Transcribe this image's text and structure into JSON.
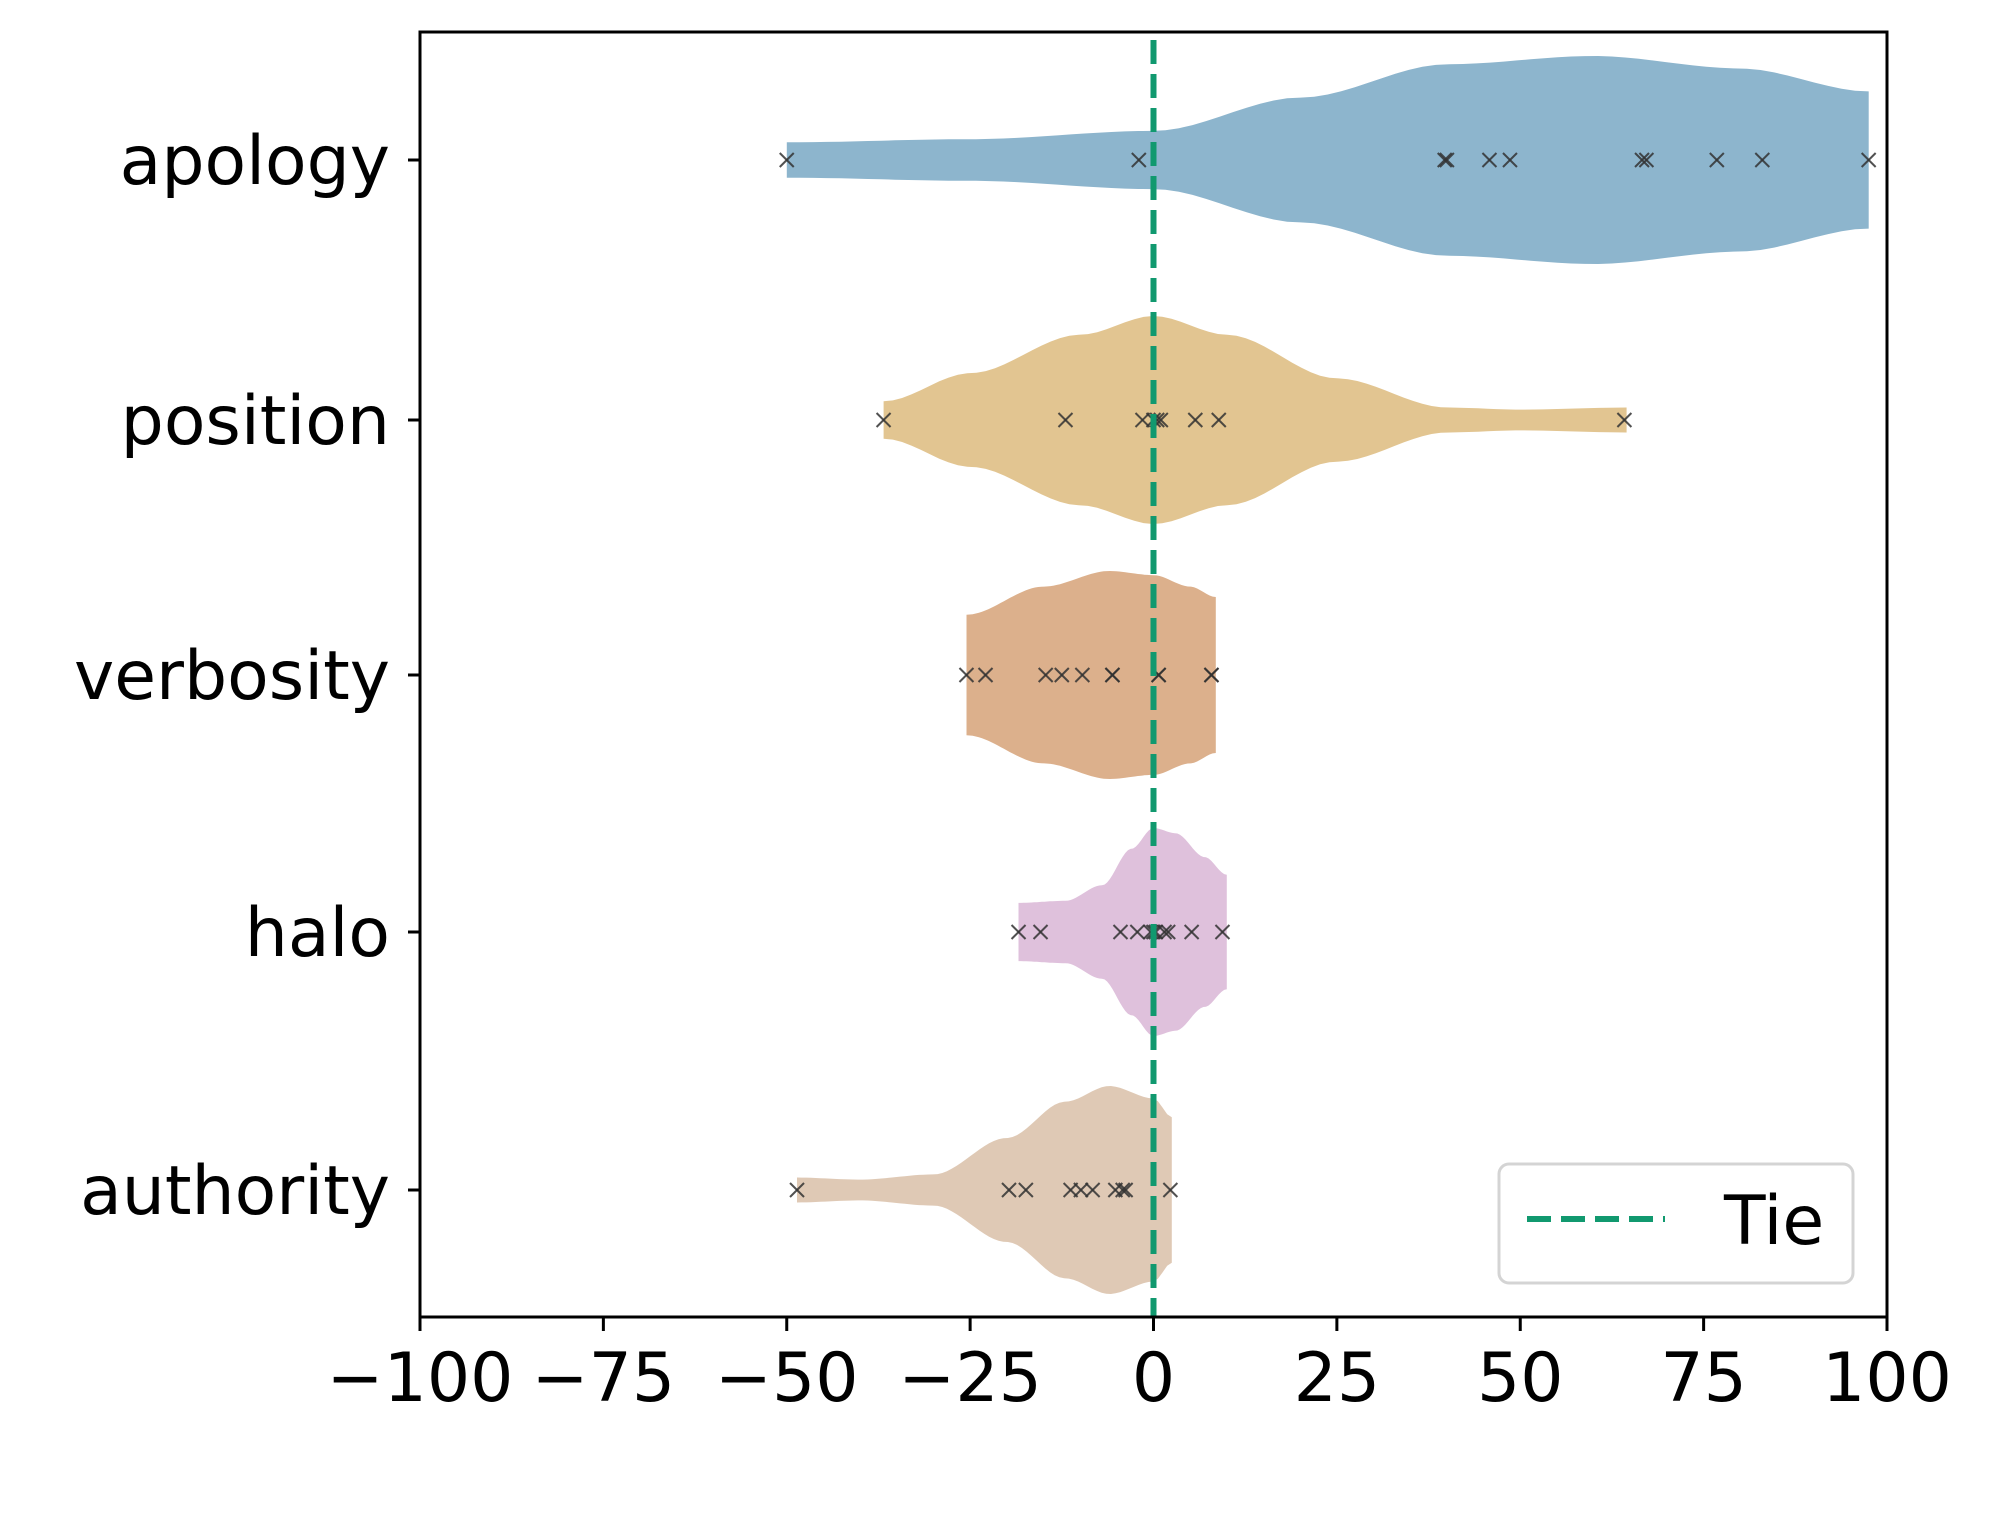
{
  "chart_data": {
    "type": "violin",
    "orientation": "horizontal",
    "title": "",
    "xlabel": "",
    "ylabel": "",
    "xlim": [
      -100,
      100
    ],
    "xticks": [
      -100,
      -75,
      -50,
      -25,
      0,
      25,
      50,
      75,
      100
    ],
    "xtick_labels": [
      "−100",
      "−75",
      "−50",
      "−25",
      "0",
      "25",
      "50",
      "75",
      "100"
    ],
    "categories": [
      "apology",
      "position",
      "verbosity",
      "halo",
      "authority"
    ],
    "series": [
      {
        "name": "apology",
        "color": "#8db5cd",
        "range": [
          -50,
          97.5
        ],
        "points": [
          -50,
          -2,
          39.7,
          40,
          45.8,
          48.6,
          66.6,
          67.2,
          76.8,
          83,
          97.5
        ],
        "profile": [
          [
            -50,
            0.17
          ],
          [
            -25,
            0.2
          ],
          [
            0,
            0.28
          ],
          [
            20,
            0.6
          ],
          [
            40,
            0.92
          ],
          [
            60,
            1.0
          ],
          [
            80,
            0.88
          ],
          [
            97.5,
            0.66
          ]
        ]
      },
      {
        "name": "position",
        "color": "#e2c591",
        "range": [
          -36.8,
          64.5
        ],
        "points": [
          -36.8,
          -12,
          -1.5,
          0,
          0.5,
          1,
          5.7,
          8.9,
          64.2
        ],
        "profile": [
          [
            -36.8,
            0.18
          ],
          [
            -25,
            0.45
          ],
          [
            -10,
            0.82
          ],
          [
            0,
            1.0
          ],
          [
            10,
            0.82
          ],
          [
            25,
            0.4
          ],
          [
            40,
            0.12
          ],
          [
            50,
            0.1
          ],
          [
            64.5,
            0.12
          ]
        ]
      },
      {
        "name": "verbosity",
        "color": "#dcb08c",
        "range": [
          -25.5,
          8.5
        ],
        "points": [
          -25.5,
          -22.9,
          -14.7,
          -12.5,
          -9.7,
          -5.6,
          -5.6,
          0.7,
          0.7,
          7.9,
          7.9
        ],
        "profile": [
          [
            -25.5,
            0.58
          ],
          [
            -15,
            0.85
          ],
          [
            -6,
            1.0
          ],
          [
            0,
            0.96
          ],
          [
            5,
            0.85
          ],
          [
            8.5,
            0.75
          ]
        ]
      },
      {
        "name": "halo",
        "color": "#dfc1dc",
        "range": [
          -18.4,
          10
        ],
        "points": [
          -18.4,
          -15.4,
          -4.5,
          -2.2,
          -0.4,
          0,
          0.3,
          1.5,
          2,
          5.2,
          9.4
        ],
        "profile": [
          [
            -18.4,
            0.28
          ],
          [
            -12,
            0.3
          ],
          [
            -7,
            0.45
          ],
          [
            -3,
            0.8
          ],
          [
            0,
            1.0
          ],
          [
            3,
            0.95
          ],
          [
            7,
            0.72
          ],
          [
            10,
            0.55
          ]
        ]
      },
      {
        "name": "authority",
        "color": "#dfc9b5",
        "range": [
          -48.6,
          2.5
        ],
        "points": [
          -48.6,
          -19.7,
          -17.4,
          -11.3,
          -9.9,
          -8.3,
          -5.2,
          -4.2,
          -3.8,
          2.3
        ],
        "profile": [
          [
            -48.6,
            0.12
          ],
          [
            -40,
            0.1
          ],
          [
            -30,
            0.15
          ],
          [
            -20,
            0.5
          ],
          [
            -12,
            0.85
          ],
          [
            -6,
            1.0
          ],
          [
            0,
            0.88
          ],
          [
            2.5,
            0.7
          ]
        ]
      }
    ],
    "reference_line": {
      "x": 0,
      "label": "Tie",
      "color": "#11996f",
      "style": "dashed"
    },
    "legend": {
      "entries": [
        "Tie"
      ],
      "placement": "lower-right"
    },
    "marker": {
      "symbol": "x",
      "color": "#333333"
    },
    "grid": false
  }
}
